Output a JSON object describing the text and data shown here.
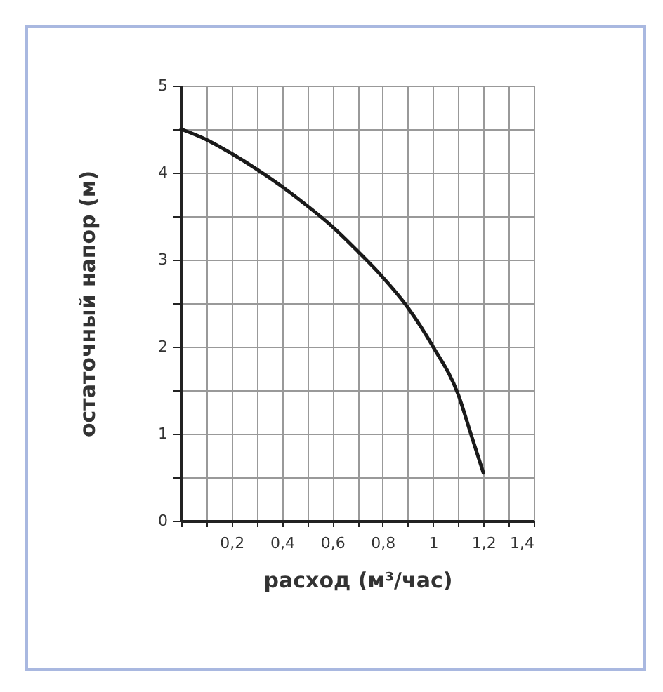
{
  "chart_data": {
    "type": "line",
    "xlabel": "расход (м³/час)",
    "ylabel": "остаточный напор (м)",
    "x": [
      0,
      0.1,
      0.2,
      0.3,
      0.4,
      0.5,
      0.6,
      0.7,
      0.8,
      0.9,
      1.0,
      1.1,
      1.15,
      1.2
    ],
    "series": [
      {
        "color": "#1a1a1a",
        "values": [
          4.5,
          4.38,
          4.22,
          4.04,
          3.84,
          3.62,
          3.38,
          3.1,
          2.8,
          2.45,
          2.0,
          1.45,
          1.0,
          0.55
        ]
      }
    ],
    "xlim": [
      0,
      1.4
    ],
    "xticks": [
      {
        "value": 0,
        "label": null
      },
      {
        "value": 0.1,
        "label": null
      },
      {
        "value": 0.2,
        "label": "0,2"
      },
      {
        "value": 0.3,
        "label": null
      },
      {
        "value": 0.4,
        "label": "0,4"
      },
      {
        "value": 0.5,
        "label": null
      },
      {
        "value": 0.6,
        "label": "0,6"
      },
      {
        "value": 0.7,
        "label": null
      },
      {
        "value": 0.8,
        "label": "0,8"
      },
      {
        "value": 0.9,
        "label": null
      },
      {
        "value": 1,
        "label": "1"
      },
      {
        "value": 1.1,
        "label": null
      },
      {
        "value": 1.2,
        "label": "1,2"
      },
      {
        "value": 1.3,
        "label": null
      },
      {
        "value": 1.4,
        "label": "1,4"
      }
    ],
    "ylim": [
      0,
      5
    ],
    "yticks": [
      0,
      {
        "value": 0.5,
        "label": null
      },
      1,
      {
        "value": 1.5,
        "label": null
      },
      2,
      {
        "value": 2.5,
        "label": null
      },
      3,
      {
        "value": 3.5,
        "label": null
      },
      4,
      {
        "value": 4.5,
        "label": null
      },
      5
    ],
    "grid": true,
    "marker": "none",
    "line_style": "solid",
    "legend": false
  }
}
